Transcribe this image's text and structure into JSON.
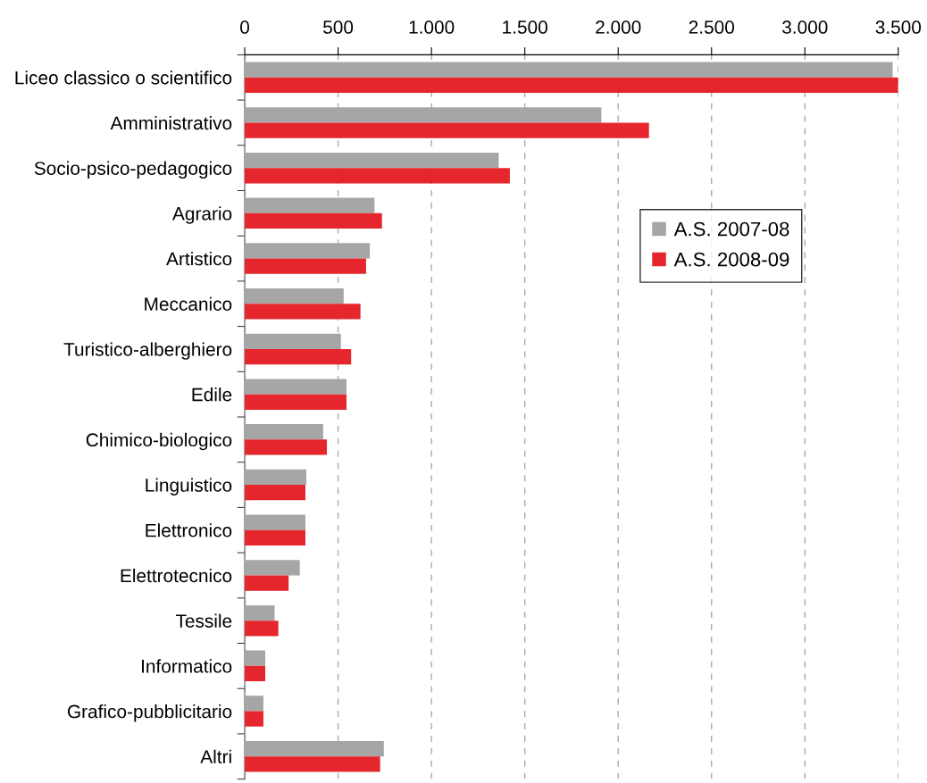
{
  "chart_data": {
    "type": "bar",
    "orientation": "horizontal",
    "categories": [
      "Liceo classico o scientifico",
      "Amministrativo",
      "Socio-psico-pedagogico",
      "Agrario",
      "Artistico",
      "Meccanico",
      "Turistico-alberghiero",
      "Edile",
      "Chimico-biologico",
      "Linguistico",
      "Elettronico",
      "Elettrotecnico",
      "Tessile",
      "Informatico",
      "Grafico-pubblicitario",
      "Altri"
    ],
    "series": [
      {
        "name": "A.S. 2007-08",
        "color": "#a6a6a6",
        "values": [
          3470,
          1910,
          1360,
          695,
          670,
          530,
          515,
          545,
          420,
          330,
          325,
          295,
          160,
          110,
          100,
          745
        ]
      },
      {
        "name": "A.S. 2008-09",
        "color": "#e5262d",
        "values": [
          3500,
          2165,
          1420,
          735,
          650,
          620,
          570,
          545,
          440,
          325,
          325,
          235,
          180,
          110,
          100,
          725
        ]
      }
    ],
    "xlim": [
      0,
      3500
    ],
    "xticks": [
      0,
      500,
      {
        "value": 1000,
        "label": "1.000"
      },
      {
        "value": 1500,
        "label": "1.500"
      },
      {
        "value": 2000,
        "label": "2.000"
      },
      {
        "value": 2500,
        "label": "2.500"
      },
      {
        "value": 3000,
        "label": "3.000"
      },
      {
        "value": 3500,
        "label": "3.500"
      }
    ],
    "grid": "x",
    "legend": "right"
  }
}
